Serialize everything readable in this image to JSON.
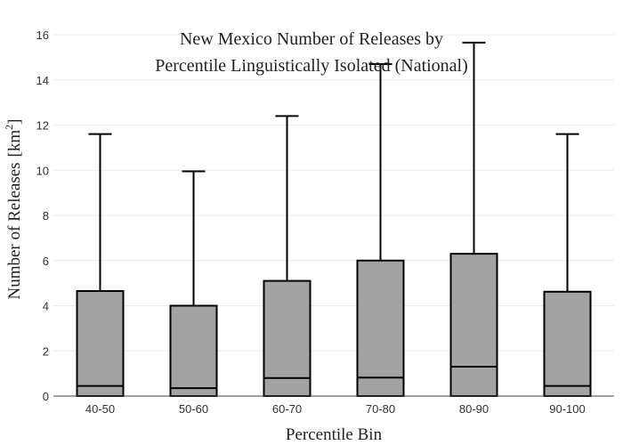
{
  "chart_data": {
    "type": "box",
    "title": "New Mexico Number of Releases by Percentile Linguistically Isolated (National)",
    "title_lines": [
      "New Mexico Number of Releases by",
      "Percentile Linguistically Isolated (National)"
    ],
    "xlabel": "Percentile Bin",
    "ylabel": "Number of Releases",
    "ylabel_unit_base": "[km",
    "ylabel_unit_exp": "2",
    "ylabel_unit_close": "]",
    "ylim": [
      0,
      16
    ],
    "yticks": [
      0,
      2,
      4,
      6,
      8,
      10,
      12,
      14,
      16
    ],
    "grid": true,
    "categories": [
      "40-50",
      "50-60",
      "60-70",
      "70-80",
      "80-90",
      "90-100"
    ],
    "series": [
      {
        "boxes": [
          {
            "category": "40-50",
            "min": 0,
            "q1": 0,
            "median": 0.45,
            "q3": 4.65,
            "max": 11.6
          },
          {
            "category": "50-60",
            "min": 0,
            "q1": 0,
            "median": 0.35,
            "q3": 4.0,
            "max": 9.95
          },
          {
            "category": "60-70",
            "min": 0,
            "q1": 0,
            "median": 0.8,
            "q3": 5.1,
            "max": 12.4
          },
          {
            "category": "70-80",
            "min": 0,
            "q1": 0,
            "median": 0.82,
            "q3": 6.0,
            "max": 14.7
          },
          {
            "category": "80-90",
            "min": 0,
            "q1": 0,
            "median": 1.3,
            "q3": 6.3,
            "max": 15.65
          },
          {
            "category": "90-100",
            "min": 0,
            "q1": 0,
            "median": 0.45,
            "q3": 4.62,
            "max": 11.6
          }
        ]
      }
    ],
    "colors": {
      "box_fill": "#a3a3a3",
      "box_stroke": "#000000"
    }
  }
}
